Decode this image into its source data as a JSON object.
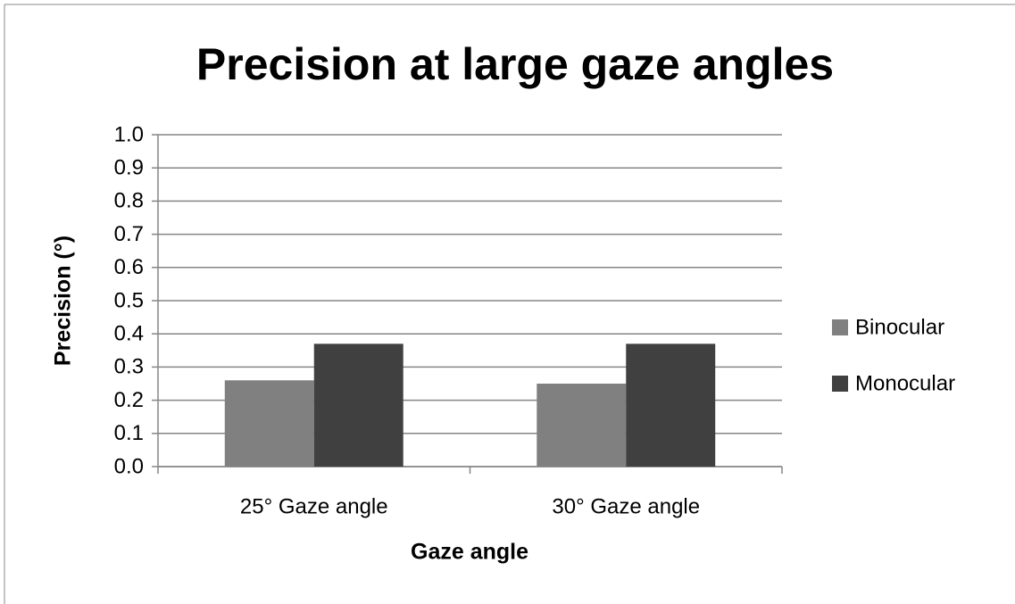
{
  "chart_data": {
    "type": "bar",
    "title": "Precision at large gaze angles",
    "xlabel": "Gaze angle",
    "ylabel": "Precision (°)",
    "categories": [
      "25° Gaze angle",
      "30° Gaze angle"
    ],
    "series": [
      {
        "name": "Binocular",
        "color": "#808080",
        "values": [
          0.26,
          0.25
        ]
      },
      {
        "name": "Monocular",
        "color": "#404040",
        "values": [
          0.37,
          0.37
        ]
      }
    ],
    "ylim": [
      0,
      1
    ],
    "yticks": [
      {
        "value": 0,
        "label": "0.0"
      },
      0.1,
      0.2,
      0.3,
      0.4,
      0.5,
      0.6,
      0.7,
      0.8,
      0.9,
      {
        "value": 1,
        "label": "1.0"
      }
    ],
    "grid": true,
    "legend": "right"
  }
}
